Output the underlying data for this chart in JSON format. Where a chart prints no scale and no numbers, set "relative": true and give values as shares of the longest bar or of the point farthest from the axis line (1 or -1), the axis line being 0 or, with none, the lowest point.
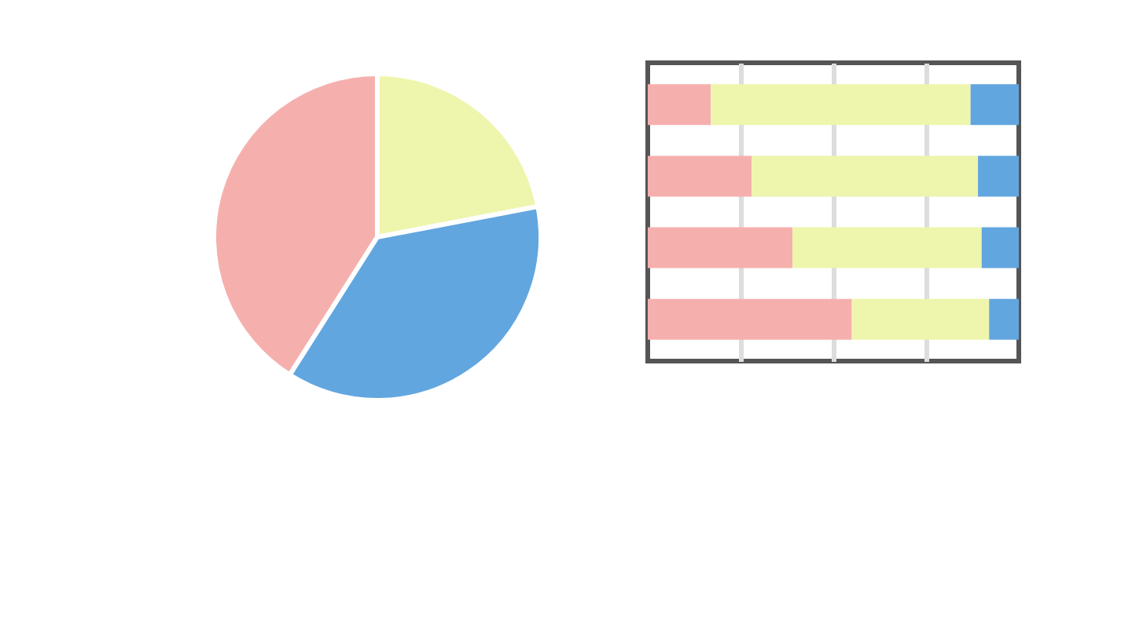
{
  "chart_data": [
    {
      "type": "pie",
      "categories": [
        null,
        null,
        null
      ],
      "values": [
        41,
        22,
        37
      ],
      "colors": [
        "#f5b0ae",
        "#eef5ad",
        "#62a6df"
      ]
    },
    {
      "type": "bar",
      "orientation": "horizontal",
      "stacked": true,
      "relative": true,
      "categories": [
        null,
        null,
        null,
        null
      ],
      "series": [
        {
          "color": "#f5b0ae",
          "values": [
            0.17,
            0.28,
            0.39,
            0.55
          ]
        },
        {
          "color": "#eef5ad",
          "values": [
            0.7,
            0.61,
            0.51,
            0.37
          ]
        },
        {
          "color": "#62a6df",
          "values": [
            0.13,
            0.11,
            0.1,
            0.08
          ]
        }
      ],
      "grid": "x",
      "tick_labels": false
    }
  ]
}
